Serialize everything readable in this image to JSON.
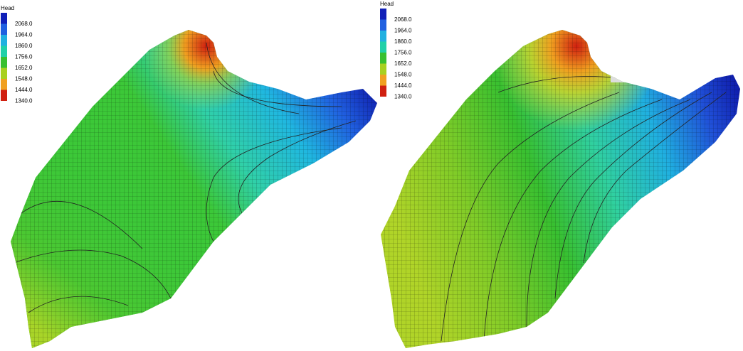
{
  "panels": [
    {
      "legend": {
        "title": "Head",
        "labels": [
          "2068.0",
          "1964.0",
          "1860.0",
          "1756.0",
          "1652.0",
          "1548.0",
          "1444.0",
          "1340.0"
        ]
      }
    },
    {
      "legend": {
        "title": "Head",
        "labels": [
          "2068.0",
          "1964.0",
          "1860.0",
          "1756.0",
          "1652.0",
          "1548.0",
          "1444.0",
          "1340.0"
        ]
      }
    }
  ]
}
